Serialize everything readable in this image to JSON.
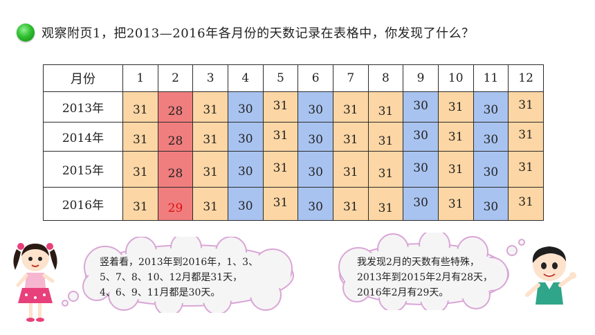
{
  "question": "观察附页1，把2013—2016年各月份的天数记录在表格中，你发现了什么？",
  "table": {
    "month_header": "月份",
    "months": [
      "1",
      "2",
      "3",
      "4",
      "5",
      "6",
      "7",
      "8",
      "9",
      "10",
      "11",
      "12"
    ],
    "rows": [
      {
        "year": "2013年",
        "days": [
          "31",
          "28",
          "31",
          "30",
          "31",
          "30",
          "31",
          "31",
          "30",
          "31",
          "30",
          "31"
        ]
      },
      {
        "year": "2014年",
        "days": [
          "31",
          "28",
          "31",
          "30",
          "31",
          "30",
          "31",
          "31",
          "30",
          "31",
          "30",
          "31"
        ]
      },
      {
        "year": "2015年",
        "days": [
          "31",
          "28",
          "31",
          "30",
          "31",
          "30",
          "31",
          "31",
          "30",
          "31",
          "30",
          "31"
        ]
      },
      {
        "year": "2016年",
        "days": [
          "31",
          "29",
          "31",
          "30",
          "31",
          "30",
          "31",
          "31",
          "30",
          "31",
          "30",
          "31"
        ]
      }
    ]
  },
  "bubbles": {
    "left": [
      "竖着看，2013年到2016年，1、3、",
      "5、7、8、10、12月都是31天，",
      "4、6、9、11月都是30天。"
    ],
    "right": [
      "我发现2月的天数有些特殊，",
      "2013年到2015年2月有28天，",
      "2016年2月有29天。"
    ]
  },
  "colors": {
    "days31": "#fcd6a4",
    "days30": "#a9c3f0",
    "february": "#f07e7e",
    "leap_day_text": "#e01010",
    "bullet": "#2fbf2f"
  },
  "icons": {
    "bullet": "green-ball-icon",
    "girl": "girl-character-icon",
    "boy": "boy-character-icon"
  }
}
